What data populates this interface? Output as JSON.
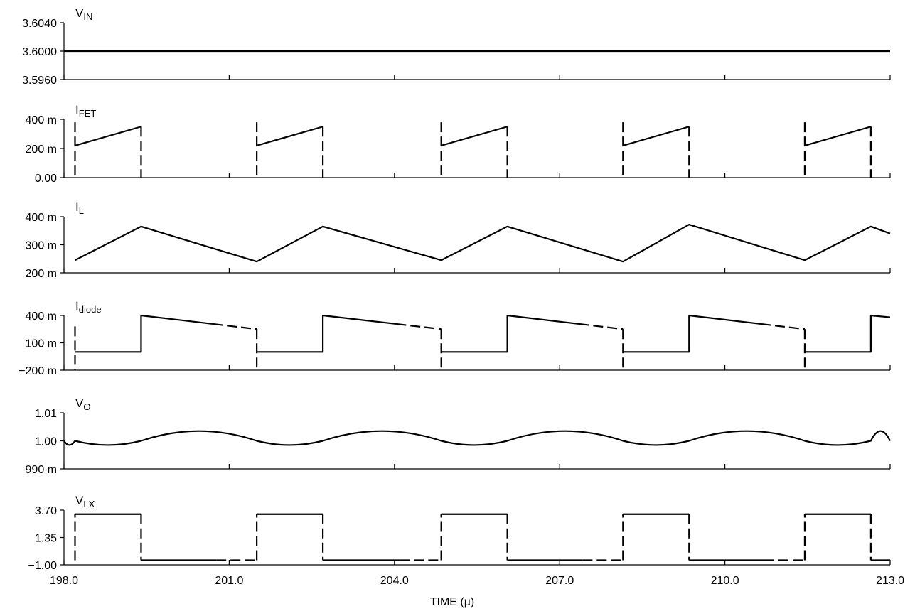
{
  "chart_data": {
    "type": "line",
    "x_axis": {
      "title": "TIME (µ)",
      "range": [
        198.0,
        213.0
      ],
      "ticks": [
        198.0,
        201.0,
        204.0,
        207.0,
        210.0,
        213.0
      ],
      "tick_labels": [
        "198.0",
        "201.0",
        "204.0",
        "207.0",
        "210.0",
        "213.0"
      ]
    },
    "switching": {
      "on_times": [
        198.2,
        201.5,
        204.85,
        208.15,
        211.45
      ],
      "off_times": [
        199.4,
        202.7,
        206.05,
        209.35,
        212.65
      ]
    },
    "panels": [
      {
        "id": "vin",
        "label_main": "V",
        "label_sub": "IN",
        "ylim": [
          3.596,
          3.604
        ],
        "ticks": [
          3.596,
          3.6,
          3.604
        ],
        "tick_labels": [
          "3.5960",
          "3.6000",
          "3.6040"
        ],
        "kind": "constant",
        "value": 3.6
      },
      {
        "id": "ifet",
        "label_main": "I",
        "label_sub": "FET",
        "ylim": [
          0,
          0.4
        ],
        "ticks": [
          0,
          0.2,
          0.4
        ],
        "tick_labels": [
          "0.00",
          "200 m",
          "400 m"
        ],
        "kind": "fet",
        "ramp_start": 0.22,
        "ramp_end": 0.35,
        "spike": 0.38
      },
      {
        "id": "il",
        "label_main": "I",
        "label_sub": "L",
        "ylim": [
          0.2,
          0.4
        ],
        "ticks": [
          0.2,
          0.3,
          0.4
        ],
        "tick_labels": [
          "200 m",
          "300 m",
          "400 m"
        ],
        "kind": "polyline",
        "x": [
          198.2,
          199.4,
          201.5,
          202.7,
          204.85,
          206.05,
          208.15,
          209.35,
          211.45,
          212.65,
          213.0
        ],
        "y": [
          0.245,
          0.365,
          0.24,
          0.365,
          0.245,
          0.365,
          0.24,
          0.372,
          0.245,
          0.365,
          0.34
        ]
      },
      {
        "id": "idiode",
        "label_main": "I",
        "label_sub": "diode",
        "ylim": [
          -0.2,
          0.4
        ],
        "ticks": [
          -0.2,
          0.1,
          0.4
        ],
        "tick_labels": [
          "−200 m",
          "100 m",
          "400 m"
        ],
        "kind": "diode",
        "flat": 0.0,
        "peak": 0.4,
        "end": 0.25,
        "start_spike": 0.28,
        "low": -0.2
      },
      {
        "id": "vo",
        "label_main": "V",
        "label_sub": "O",
        "ylim": [
          0.99,
          1.01
        ],
        "ticks": [
          0.99,
          1.0,
          1.01
        ],
        "tick_labels": [
          "990 m",
          "1.00",
          "1.01"
        ],
        "kind": "ripple",
        "min": 0.9985,
        "max": 1.0035,
        "mid": 1.0
      },
      {
        "id": "vlx",
        "label_main": "V",
        "label_sub": "LX",
        "ylim": [
          -1.0,
          3.7
        ],
        "ticks": [
          -1.0,
          1.35,
          3.7
        ],
        "tick_labels": [
          "−1.00",
          "1.35",
          "3.70"
        ],
        "kind": "square",
        "high": 3.35,
        "low": -0.6
      }
    ]
  }
}
